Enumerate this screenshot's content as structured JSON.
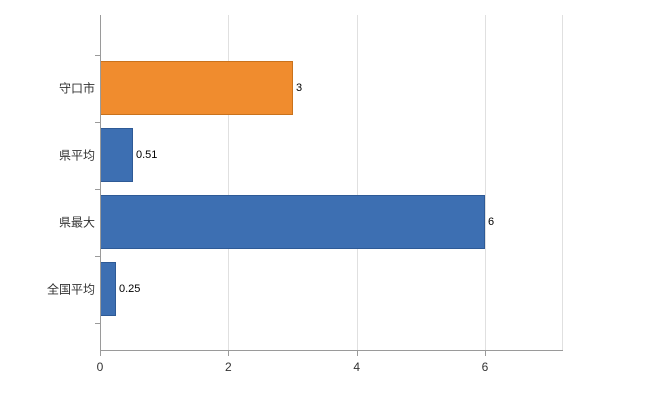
{
  "chart_data": {
    "type": "bar",
    "orientation": "horizontal",
    "title": "",
    "categories": [
      "守口市",
      "県平均",
      "県最大",
      "全国平均"
    ],
    "values": [
      3,
      0.51,
      6,
      0.25
    ],
    "value_labels": [
      "3",
      "0.51",
      "6",
      "0.25"
    ],
    "series": [
      {
        "name": "",
        "values": [
          3,
          0.51,
          6,
          0.25
        ]
      }
    ],
    "bar_colors": [
      "#f08c2e",
      "#3d6fb2",
      "#3d6fb2",
      "#3d6fb2"
    ],
    "bar_border_colors": [
      "#c9721c",
      "#2e5a96",
      "#2e5a96",
      "#2e5a96"
    ],
    "x_tick_labels": [
      "0",
      "2",
      "4",
      "6"
    ],
    "x_tick_values": [
      0,
      2,
      4,
      6
    ],
    "xlim": [
      0,
      7.2
    ],
    "ylabel": "",
    "xlabel": "",
    "grid": true,
    "legend_position": "none"
  },
  "colors": {
    "grid": "#e0e0e0",
    "axis": "#9a9a9a",
    "category_label": "#333333",
    "value_label": "#000000",
    "background": "#ffffff"
  }
}
